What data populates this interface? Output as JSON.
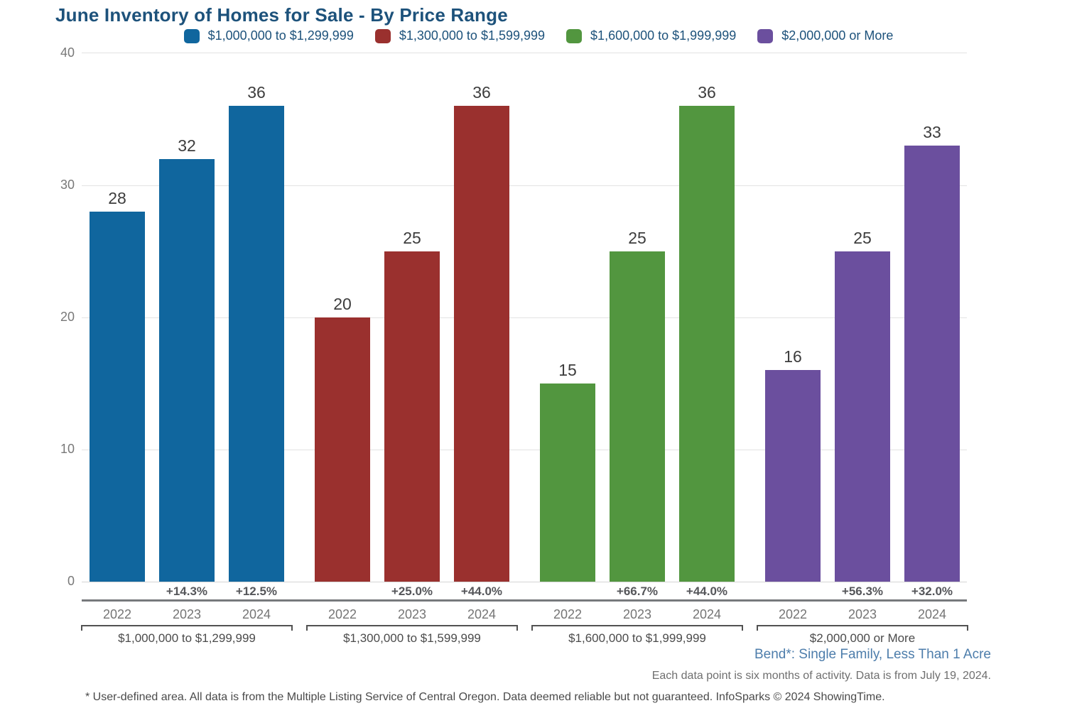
{
  "title": "June Inventory of Homes for Sale - By Price Range",
  "chart_data": {
    "type": "bar",
    "categories": [
      "2022",
      "2023",
      "2024"
    ],
    "series": [
      {
        "name": "$1,000,000 to $1,299,999",
        "color": "#10669e",
        "values": [
          28,
          32,
          36
        ],
        "pct_change": [
          null,
          "+14.3%",
          "+12.5%"
        ]
      },
      {
        "name": "$1,300,000 to $1,599,999",
        "color": "#9a302e",
        "values": [
          20,
          25,
          36
        ],
        "pct_change": [
          null,
          "+25.0%",
          "+44.0%"
        ]
      },
      {
        "name": "$1,600,000 to $1,999,999",
        "color": "#52963f",
        "values": [
          15,
          25,
          36
        ],
        "pct_change": [
          null,
          "+66.7%",
          "+44.0%"
        ]
      },
      {
        "name": "$2,000,000 or More",
        "color": "#6b4f9e",
        "values": [
          16,
          25,
          33
        ],
        "pct_change": [
          null,
          "+56.3%",
          "+32.0%"
        ]
      }
    ],
    "ylim": [
      0,
      40
    ],
    "yticks": [
      0,
      10,
      20,
      30,
      40
    ],
    "grid": true,
    "legend_position": "top",
    "xlabel": "",
    "ylabel": ""
  },
  "footer": {
    "area_label": "Bend*: Single Family, Less Than 1 Acre",
    "data_note": "Each data point is six months of activity. Data is from July 19, 2024.",
    "disclaimer": "* User-defined area. All data is from the Multiple Listing Service of Central Oregon. Data deemed reliable but not guaranteed. InfoSparks © 2024 ShowingTime."
  }
}
